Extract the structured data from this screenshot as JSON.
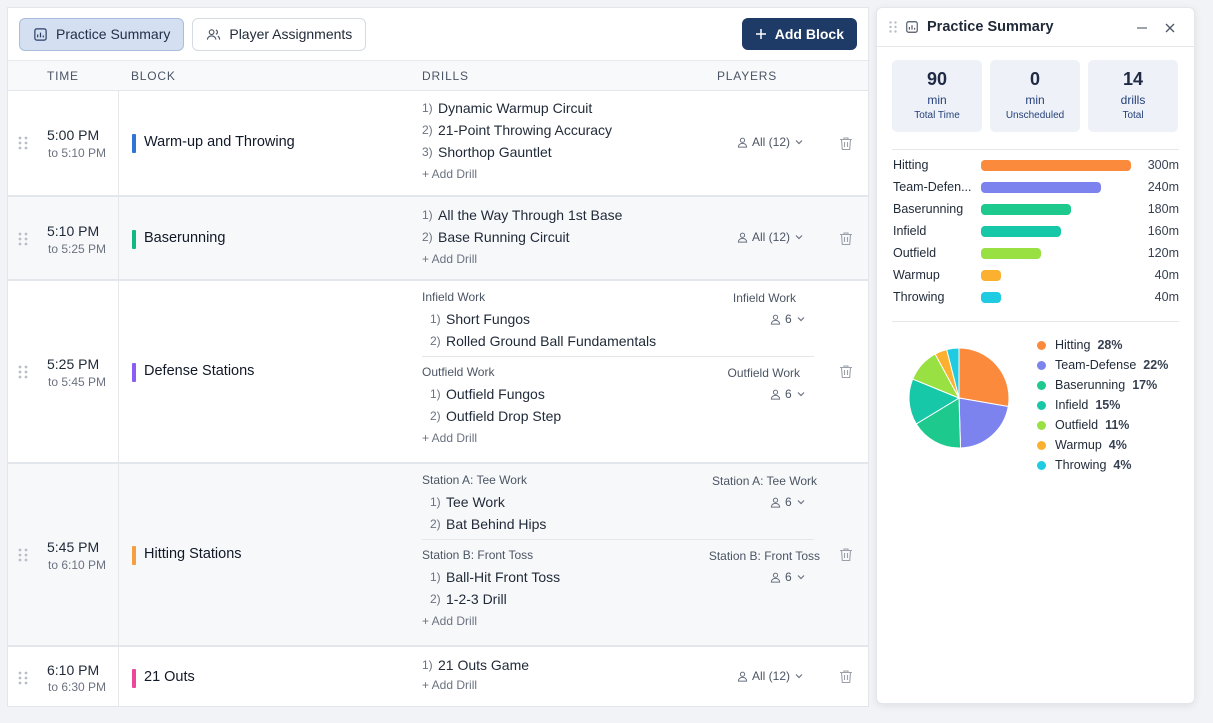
{
  "toolbar": {
    "tab_summary": "Practice Summary",
    "tab_players": "Player Assignments",
    "add_block": "Add Block"
  },
  "table": {
    "headers": {
      "time": "TIME",
      "block": "BLOCK",
      "drills": "DRILLS",
      "players": "PLAYERS"
    },
    "add_drill": "+ Add Drill",
    "blocks": [
      {
        "start": "5:00 PM",
        "end": "to 5:10 PM",
        "name": "Warm-up and Throwing",
        "color": "#2f74d6",
        "players": "All (12)",
        "drills": [
          {
            "n": "1)",
            "name": "Dynamic Warmup Circuit"
          },
          {
            "n": "2)",
            "name": "21-Point Throwing Accuracy"
          },
          {
            "n": "3)",
            "name": "Shorthop Gauntlet"
          }
        ]
      },
      {
        "start": "5:10 PM",
        "end": "to 5:25 PM",
        "name": "Baserunning",
        "color": "#10b981",
        "players": "All (12)",
        "drills": [
          {
            "n": "1)",
            "name": "All the Way Through 1st Base"
          },
          {
            "n": "2)",
            "name": "Base Running Circuit"
          }
        ]
      },
      {
        "start": "5:25 PM",
        "end": "to 5:45 PM",
        "name": "Defense Stations",
        "color": "#8b5cf6",
        "stations": [
          {
            "label": "Infield Work",
            "right_label": "Infield Work",
            "players": "6",
            "drills": [
              {
                "n": "1)",
                "name": "Short Fungos"
              },
              {
                "n": "2)",
                "name": "Rolled Ground Ball Fundamentals"
              }
            ]
          },
          {
            "label": "Outfield Work",
            "right_label": "Outfield Work",
            "players": "6",
            "drills": [
              {
                "n": "1)",
                "name": "Outfield Fungos"
              },
              {
                "n": "2)",
                "name": "Outfield Drop Step"
              }
            ]
          }
        ]
      },
      {
        "start": "5:45 PM",
        "end": "to 6:10 PM",
        "name": "Hitting Stations",
        "color": "#f59e42",
        "stations": [
          {
            "label": "Station A: Tee Work",
            "right_label": "Station A: Tee Work",
            "players": "6",
            "drills": [
              {
                "n": "1)",
                "name": "Tee Work"
              },
              {
                "n": "2)",
                "name": "Bat Behind Hips"
              }
            ]
          },
          {
            "label": "Station B: Front Toss",
            "right_label": "Station B: Front Toss",
            "players": "6",
            "drills": [
              {
                "n": "1)",
                "name": "Ball-Hit Front Toss"
              },
              {
                "n": "2)",
                "name": "1-2-3 Drill"
              }
            ]
          }
        ]
      },
      {
        "start": "6:10 PM",
        "end": "to 6:30 PM",
        "name": "21 Outs",
        "color": "#ec4899",
        "players": "All (12)",
        "drills": [
          {
            "n": "1)",
            "name": "21 Outs Game"
          }
        ]
      }
    ]
  },
  "panel": {
    "title": "Practice Summary",
    "stats": [
      {
        "value": "90",
        "unit": "min",
        "label": "Total Time"
      },
      {
        "value": "0",
        "unit": "min",
        "label": "Unscheduled"
      },
      {
        "value": "14",
        "unit": "drills",
        "label": "Total"
      }
    ]
  },
  "chart_data": [
    {
      "type": "bar",
      "categories": [
        "Hitting",
        "Team-Defen...",
        "Baserunning",
        "Infield",
        "Outfield",
        "Warmup",
        "Throwing"
      ],
      "values": [
        300,
        240,
        180,
        160,
        120,
        40,
        40
      ],
      "value_labels": [
        "300m",
        "240m",
        "180m",
        "160m",
        "120m",
        "40m",
        "40m"
      ],
      "colors": [
        "#fb8a3c",
        "#7c83ef",
        "#1ec98d",
        "#16c7a8",
        "#99e043",
        "#fbb12f",
        "#1ecbe1"
      ]
    },
    {
      "type": "pie",
      "labels": [
        "Hitting",
        "Team-Defense",
        "Baserunning",
        "Infield",
        "Outfield",
        "Warmup",
        "Throwing"
      ],
      "values": [
        28,
        22,
        17,
        15,
        11,
        4,
        4
      ],
      "pct_labels": [
        "28%",
        "22%",
        "17%",
        "15%",
        "11%",
        "4%",
        "4%"
      ],
      "colors": [
        "#fb8a3c",
        "#7c83ef",
        "#1ec98d",
        "#16c7a8",
        "#99e043",
        "#fbb12f",
        "#1ecbe1"
      ]
    }
  ]
}
